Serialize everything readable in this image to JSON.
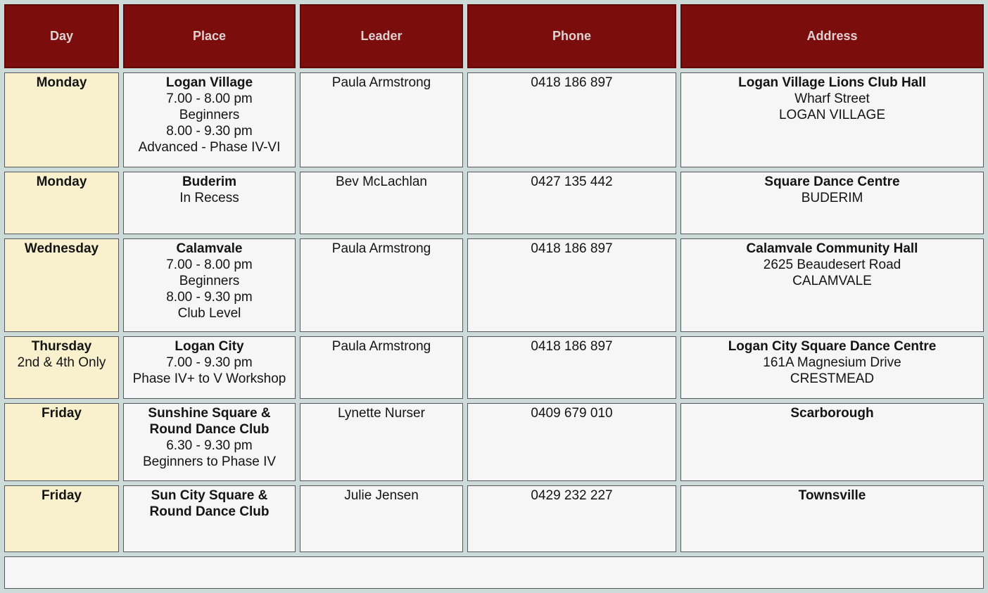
{
  "colors": {
    "page_bg": "#ccdbd7",
    "header_bg": "#7c0d0d",
    "header_border": "#5e0a0a",
    "header_text": "#e0d2d2",
    "day_bg": "#f9f0cd",
    "cell_bg": "#f5f6f5",
    "cell_border": "#55585e",
    "text": "#141414"
  },
  "table": {
    "columns": [
      {
        "label": "Day"
      },
      {
        "label": "Place"
      },
      {
        "label": "Leader"
      },
      {
        "label": "Phone"
      },
      {
        "label": "Address"
      }
    ],
    "rows": [
      {
        "day": {
          "name": "Monday",
          "note": ""
        },
        "place": {
          "name": "Logan Village",
          "details": [
            "7.00 - 8.00 pm",
            "Beginners",
            "8.00 - 9.30 pm",
            "Advanced - Phase IV-VI"
          ]
        },
        "leader": "Paula Armstrong",
        "phone": "0418 186 897",
        "address": {
          "name": "Logan Village Lions Club Hall",
          "details": [
            "Wharf Street",
            "LOGAN VILLAGE"
          ]
        }
      },
      {
        "day": {
          "name": "Monday",
          "note": ""
        },
        "place": {
          "name": "Buderim",
          "details": [
            "In Recess"
          ]
        },
        "leader": "Bev McLachlan",
        "phone": "0427 135 442",
        "address": {
          "name": "Square Dance Centre",
          "details": [
            "BUDERIM"
          ]
        }
      },
      {
        "day": {
          "name": "Wednesday",
          "note": ""
        },
        "place": {
          "name": "Calamvale",
          "details": [
            "7.00 - 8.00 pm",
            "Beginners",
            "8.00 - 9.30 pm",
            "Club Level"
          ]
        },
        "leader": "Paula Armstrong",
        "phone": "0418 186 897",
        "address": {
          "name": "Calamvale Community Hall",
          "details": [
            "2625 Beaudesert Road",
            "CALAMVALE"
          ]
        }
      },
      {
        "day": {
          "name": "Thursday",
          "note": "2nd & 4th Only"
        },
        "place": {
          "name": "Logan City",
          "details": [
            "7.00 - 9.30 pm",
            "Phase IV+ to V Workshop"
          ]
        },
        "leader": "Paula Armstrong",
        "phone": "0418 186 897",
        "address": {
          "name": "Logan City Square Dance Centre",
          "details": [
            "161A Magnesium Drive",
            "CRESTMEAD"
          ]
        }
      },
      {
        "day": {
          "name": "Friday",
          "note": ""
        },
        "place": {
          "name": "Sunshine Square & Round Dance Club",
          "details": [
            "6.30 - 9.30 pm",
            "Beginners to Phase IV"
          ]
        },
        "leader": "Lynette Nurser",
        "phone": "0409 679 010",
        "address": {
          "name": "Scarborough",
          "details": []
        }
      },
      {
        "day": {
          "name": "Friday",
          "note": ""
        },
        "place": {
          "name": "Sun City Square & Round Dance Club",
          "details": []
        },
        "leader": "Julie Jensen",
        "phone": "0429 232 227",
        "address": {
          "name": "Townsville",
          "details": []
        }
      }
    ]
  }
}
